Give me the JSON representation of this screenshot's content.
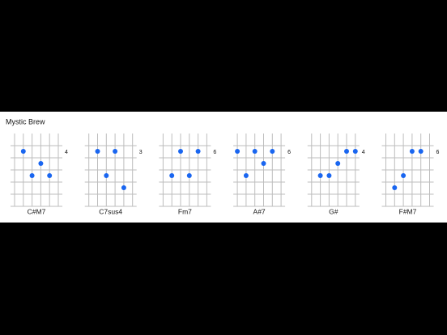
{
  "title": "Mystic Brew",
  "chords": [
    {
      "name": "C#M7",
      "fret": 4
    },
    {
      "name": "C7sus4",
      "fret": 3
    },
    {
      "name": "Fm7",
      "fret": 6
    },
    {
      "name": "A#7",
      "fret": 6
    },
    {
      "name": "G#",
      "fret": 4
    },
    {
      "name": "F#M7",
      "fret": 6
    }
  ]
}
